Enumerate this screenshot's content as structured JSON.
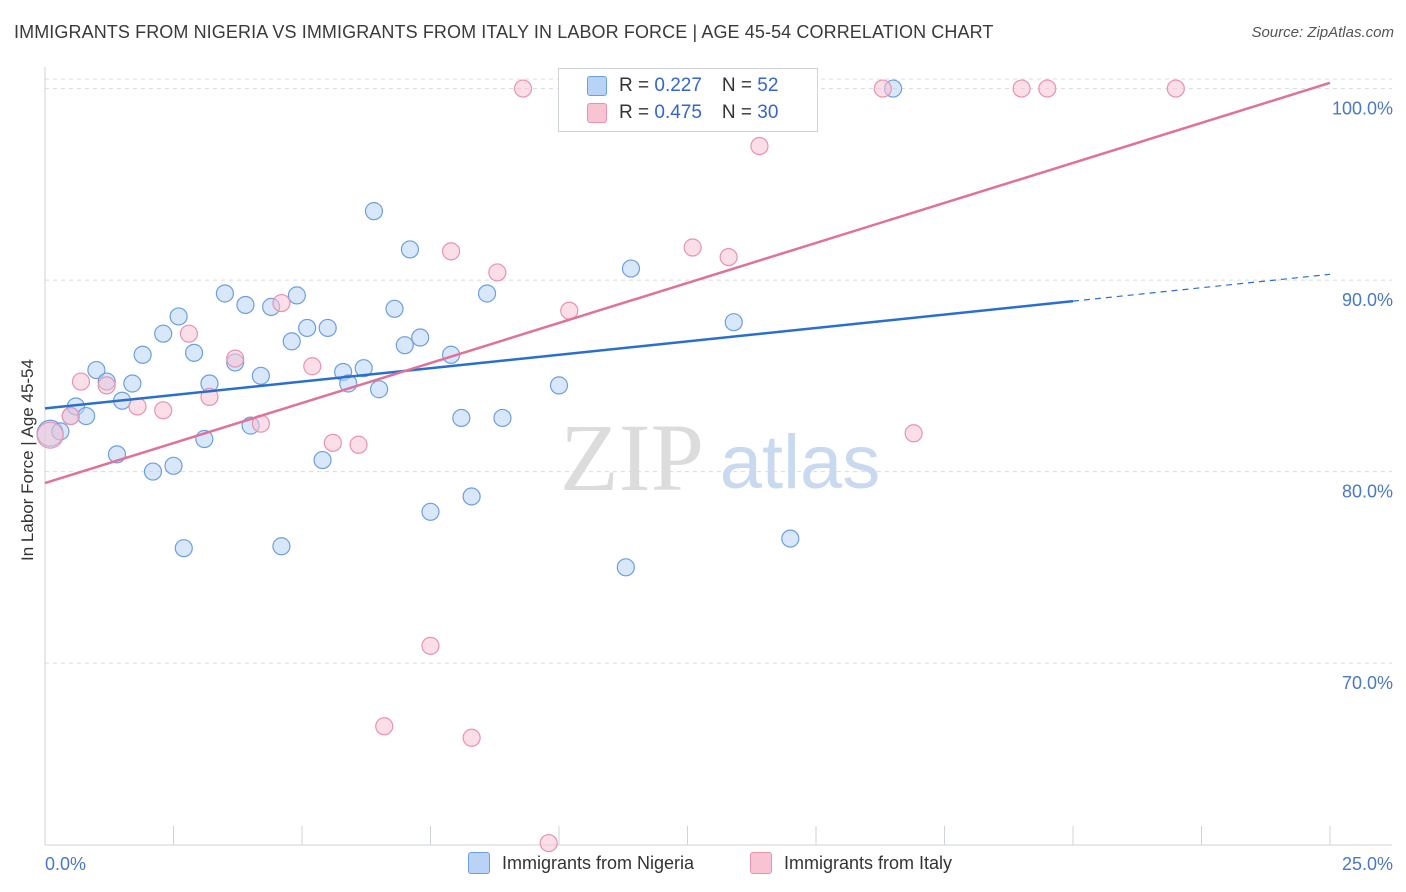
{
  "title": "IMMIGRANTS FROM NIGERIA VS IMMIGRANTS FROM ITALY IN LABOR FORCE | AGE 45-54 CORRELATION CHART",
  "source": "Source: ZipAtlas.com",
  "watermark": {
    "zip": "ZIP",
    "atlas": "atlas"
  },
  "legend": {
    "nigeria": {
      "r_label": "R = ",
      "r_value": "0.227",
      "n_label": "N = ",
      "n_value": "52"
    },
    "italy": {
      "r_label": "R = ",
      "r_value": "0.475",
      "n_label": "N = ",
      "n_value": "30"
    }
  },
  "bottom_legend": {
    "nigeria": "Immigrants from Nigeria",
    "italy": "Immigrants from Italy"
  },
  "colors": {
    "nigeria_fill": "#b8d3f5",
    "nigeria_stroke": "#6d9fe0",
    "nigeria_line": "#2a6fcf",
    "italy_fill": "#f8c3d3",
    "italy_stroke": "#e993ad",
    "italy_line": "#e0729a",
    "tick_label": "#4a78c8",
    "grid": "#d7dbe0"
  },
  "chart_data": {
    "type": "scatter",
    "title": "IMMIGRANTS FROM NIGERIA VS IMMIGRANTS FROM ITALY IN LABOR FORCE | AGE 45-54 CORRELATION CHART",
    "xlabel": "",
    "ylabel": "In Labor Force | Age 45-54",
    "xlim": [
      0,
      25
    ],
    "ylim": [
      60.5,
      100.5
    ],
    "x_tick_labels": [
      {
        "x": 0,
        "label": "0.0%"
      },
      {
        "x": 25,
        "label": "25.0%"
      }
    ],
    "y_ticks": [
      {
        "y": 70,
        "label": "70.0%"
      },
      {
        "y": 80,
        "label": "80.0%"
      },
      {
        "y": 90,
        "label": "90.0%"
      },
      {
        "y": 100,
        "label": "100.0%"
      }
    ],
    "grid": true,
    "series": [
      {
        "name": "Immigrants from Nigeria",
        "points": [
          [
            0.1,
            82.0
          ],
          [
            0.3,
            82.1
          ],
          [
            0.5,
            82.9
          ],
          [
            0.6,
            83.4
          ],
          [
            0.8,
            82.9
          ],
          [
            1.0,
            85.3
          ],
          [
            1.2,
            84.7
          ],
          [
            1.4,
            80.9
          ],
          [
            1.5,
            83.7
          ],
          [
            1.7,
            84.6
          ],
          [
            1.9,
            86.1
          ],
          [
            2.1,
            80.0
          ],
          [
            2.3,
            87.2
          ],
          [
            2.5,
            80.3
          ],
          [
            2.6,
            88.1
          ],
          [
            2.7,
            76.0
          ],
          [
            2.9,
            86.2
          ],
          [
            3.1,
            81.7
          ],
          [
            3.2,
            84.6
          ],
          [
            3.5,
            89.3
          ],
          [
            3.7,
            85.7
          ],
          [
            3.9,
            88.7
          ],
          [
            4.0,
            82.4
          ],
          [
            4.2,
            85.0
          ],
          [
            4.4,
            88.6
          ],
          [
            4.6,
            76.1
          ],
          [
            4.8,
            86.8
          ],
          [
            4.9,
            89.2
          ],
          [
            5.1,
            87.5
          ],
          [
            5.4,
            80.6
          ],
          [
            5.5,
            87.5
          ],
          [
            5.8,
            85.2
          ],
          [
            5.9,
            84.6
          ],
          [
            6.2,
            85.4
          ],
          [
            6.4,
            93.6
          ],
          [
            6.5,
            84.3
          ],
          [
            6.8,
            88.5
          ],
          [
            7.0,
            86.6
          ],
          [
            7.1,
            91.6
          ],
          [
            7.3,
            87.0
          ],
          [
            7.5,
            77.9
          ],
          [
            7.9,
            86.1
          ],
          [
            8.1,
            82.8
          ],
          [
            8.3,
            78.7
          ],
          [
            8.6,
            89.3
          ],
          [
            8.9,
            82.8
          ],
          [
            10.0,
            84.5
          ],
          [
            11.3,
            75.0
          ],
          [
            11.4,
            90.6
          ],
          [
            13.4,
            87.8
          ],
          [
            14.5,
            76.5
          ],
          [
            16.5,
            100.0
          ]
        ]
      },
      {
        "name": "Immigrants from Italy",
        "points": [
          [
            0.1,
            81.9
          ],
          [
            0.5,
            82.9
          ],
          [
            0.7,
            84.7
          ],
          [
            1.2,
            84.5
          ],
          [
            1.8,
            83.4
          ],
          [
            2.3,
            83.2
          ],
          [
            2.8,
            87.2
          ],
          [
            3.2,
            83.9
          ],
          [
            3.7,
            85.9
          ],
          [
            4.2,
            82.5
          ],
          [
            4.6,
            88.8
          ],
          [
            5.2,
            85.5
          ],
          [
            5.6,
            81.5
          ],
          [
            6.1,
            81.4
          ],
          [
            6.6,
            66.7
          ],
          [
            7.5,
            70.9
          ],
          [
            7.9,
            91.5
          ],
          [
            8.3,
            66.1
          ],
          [
            8.8,
            90.4
          ],
          [
            9.3,
            100.0
          ],
          [
            9.8,
            60.6
          ],
          [
            10.2,
            88.4
          ],
          [
            12.6,
            91.7
          ],
          [
            13.3,
            91.2
          ],
          [
            13.9,
            97.0
          ],
          [
            16.3,
            100.0
          ],
          [
            16.9,
            82.0
          ],
          [
            19.0,
            100.0
          ],
          [
            19.5,
            100.0
          ],
          [
            22.0,
            100.0
          ]
        ]
      }
    ],
    "trend_lines": [
      {
        "name": "Immigrants from Nigeria",
        "x": [
          0,
          20,
          25
        ],
        "y": [
          83.3,
          88.9,
          90.3
        ],
        "dashed_from_x": 20
      },
      {
        "name": "Immigrants from Italy",
        "x": [
          0,
          25
        ],
        "y": [
          79.4,
          100.3
        ]
      }
    ]
  }
}
